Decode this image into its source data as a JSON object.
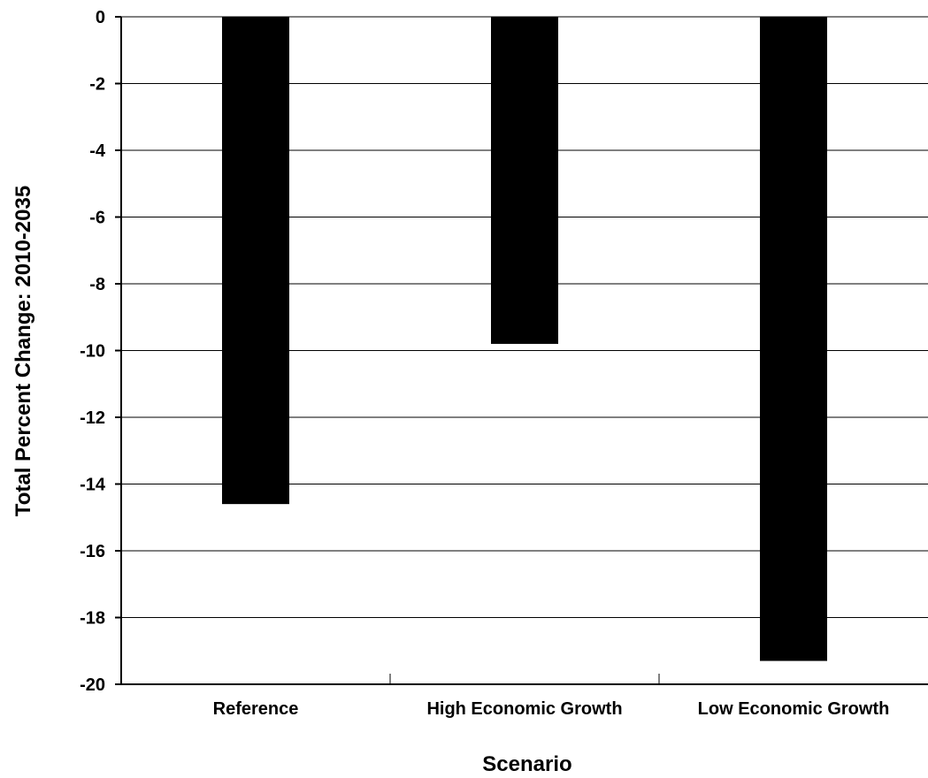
{
  "chart_data": {
    "type": "bar",
    "title": "",
    "xlabel": "Scenario",
    "ylabel": "Total Percent Change: 2010-2035",
    "categories": [
      "Reference",
      "High Economic Growth",
      "Low Economic Growth"
    ],
    "values": [
      -14.6,
      -9.8,
      -19.3
    ],
    "ylim": [
      -20,
      0
    ],
    "yticks": [
      "0",
      "-2",
      "-4",
      "-6",
      "-8",
      "-10",
      "-12",
      "-14",
      "-16",
      "-18",
      "-20"
    ],
    "grid": true,
    "legend": "none",
    "bar_color": "#000000"
  }
}
